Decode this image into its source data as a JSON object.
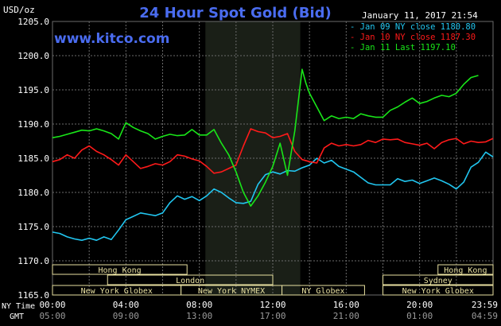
{
  "header": {
    "unit_label": "USD/oz",
    "title": "24 Hour Spot Gold (Bid)",
    "site": "www.kitco.com",
    "timestamp": "January 11, 2017 21:54"
  },
  "colors": {
    "background": "#000000",
    "title": "#4a6cf0",
    "grid": "#6b6b6b",
    "axis_text": "#ffffff",
    "session_shade": "#1a1f17",
    "jan09": "#21c6f0",
    "jan10": "#ff1a1a",
    "jan11": "#19e619",
    "market_box": "#e8e0a0"
  },
  "markets": [
    {
      "label": "Hong Kong",
      "row": 0,
      "from": 0,
      "to": 7.33
    },
    {
      "label": "Hong Kong",
      "row": 0,
      "from": 21.0,
      "to": 24.0
    },
    {
      "label": "London",
      "row": 1,
      "from": 3.0,
      "to": 12.0
    },
    {
      "label": "Sydney",
      "row": 1,
      "from": 18.0,
      "to": 24.0
    },
    {
      "label": "New York Globex",
      "row": 2,
      "from": 0,
      "to": 7.0
    },
    {
      "label": "New York NYMEX",
      "row": 2,
      "from": 7.0,
      "to": 12.5
    },
    {
      "label": "NY Globex",
      "row": 2,
      "from": 12.5,
      "to": 17.0
    },
    {
      "label": "New York Globex",
      "row": 2,
      "from": 18.0,
      "to": 24.0
    }
  ],
  "x_axis": {
    "row1_label": "NY Time",
    "row2_label": "GMT",
    "ny_ticks": [
      "00:00",
      "04:00",
      "08:00",
      "12:00",
      "16:00",
      "20:00",
      "23:59"
    ],
    "gmt_ticks": [
      "05:00",
      "09:00",
      "13:00",
      "17:00",
      "21:00",
      "01:00",
      "04:59"
    ]
  },
  "chart_data": {
    "type": "line",
    "x_unit": "hours (NY time)",
    "xlim": [
      0,
      24
    ],
    "ylim": [
      1165,
      1205
    ],
    "y_ticks": [
      1165.0,
      1170.0,
      1175.0,
      1180.0,
      1185.0,
      1190.0,
      1195.0,
      1200.0,
      1205.0
    ],
    "y_tick_labels": [
      "1165.0",
      "1170.0",
      "1175.0",
      "1180.0",
      "1185.0",
      "1190.0",
      "1195.0",
      "1200.0",
      "1205.0"
    ],
    "shaded_session": [
      8.33,
      13.5
    ],
    "series": [
      {
        "name": "Jan 09 NY close 1180.80",
        "color": "#21c6f0",
        "x": [
          0,
          0.4,
          0.8,
          1.2,
          1.6,
          2.0,
          2.4,
          2.8,
          3.2,
          3.6,
          4.0,
          4.4,
          4.8,
          5.2,
          5.6,
          6.0,
          6.4,
          6.8,
          7.2,
          7.6,
          8.0,
          8.4,
          8.8,
          9.2,
          9.6,
          10.0,
          10.4,
          10.8,
          11.2,
          11.6,
          12.0,
          12.4,
          12.8,
          13.2,
          13.6,
          14.0,
          14.4,
          14.8,
          15.2,
          15.6,
          16.0,
          16.4,
          16.8,
          17.2,
          17.6,
          18.0,
          18.4,
          18.8,
          19.2,
          19.6,
          20.0,
          20.4,
          20.8,
          21.2,
          21.6,
          22.0,
          22.4,
          22.8,
          23.2,
          23.6,
          24.0
        ],
        "y": [
          1174.2,
          1174.0,
          1173.5,
          1173.2,
          1173.0,
          1173.3,
          1173.0,
          1173.5,
          1173.1,
          1174.5,
          1176.0,
          1176.5,
          1177.0,
          1176.8,
          1176.6,
          1177.0,
          1178.5,
          1179.5,
          1179.0,
          1179.4,
          1178.8,
          1179.5,
          1180.5,
          1180.0,
          1179.2,
          1178.5,
          1178.4,
          1178.7,
          1181.2,
          1182.6,
          1183.0,
          1182.7,
          1183.2,
          1183.1,
          1183.6,
          1184.0,
          1185.0,
          1184.3,
          1184.7,
          1183.8,
          1183.4,
          1183.0,
          1182.2,
          1181.4,
          1181.1,
          1181.1,
          1181.1,
          1182.0,
          1181.6,
          1181.8,
          1181.3,
          1181.7,
          1182.1,
          1181.7,
          1181.2,
          1180.5,
          1181.5,
          1183.7,
          1184.4,
          1185.9,
          1185.2
        ]
      },
      {
        "name": "Jan 10 NY close 1187.30",
        "color": "#ff1a1a",
        "x": [
          0,
          0.4,
          0.8,
          1.2,
          1.6,
          2.0,
          2.4,
          2.8,
          3.2,
          3.6,
          4.0,
          4.4,
          4.8,
          5.2,
          5.6,
          6.0,
          6.4,
          6.8,
          7.2,
          7.6,
          8.0,
          8.4,
          8.8,
          9.2,
          9.6,
          10.0,
          10.4,
          10.8,
          11.2,
          11.6,
          12.0,
          12.4,
          12.8,
          13.2,
          13.6,
          14.0,
          14.4,
          14.8,
          15.2,
          15.6,
          16.0,
          16.4,
          16.8,
          17.2,
          17.6,
          18.0,
          18.4,
          18.8,
          19.2,
          19.6,
          20.0,
          20.4,
          20.8,
          21.2,
          21.6,
          22.0,
          22.4,
          22.8,
          23.2,
          23.6,
          24.0
        ],
        "y": [
          1184.5,
          1184.8,
          1185.5,
          1185.0,
          1186.2,
          1186.8,
          1186.0,
          1185.5,
          1184.8,
          1184.0,
          1185.5,
          1184.5,
          1183.5,
          1183.8,
          1184.2,
          1184.0,
          1184.5,
          1185.5,
          1185.3,
          1184.9,
          1184.6,
          1183.8,
          1182.8,
          1183.0,
          1183.5,
          1184.0,
          1186.8,
          1189.3,
          1188.9,
          1188.7,
          1188.0,
          1188.2,
          1188.6,
          1186.0,
          1184.8,
          1184.5,
          1184.3,
          1186.5,
          1187.2,
          1186.8,
          1187.0,
          1186.8,
          1187.0,
          1187.6,
          1187.3,
          1187.8,
          1187.7,
          1187.8,
          1187.3,
          1187.1,
          1186.9,
          1187.2,
          1186.4,
          1187.3,
          1187.7,
          1187.9,
          1187.1,
          1187.5,
          1187.3,
          1187.4,
          1187.9
        ]
      },
      {
        "name": "Jan 11 Last 1197.10",
        "color": "#19e619",
        "x": [
          0,
          0.4,
          0.8,
          1.2,
          1.6,
          2.0,
          2.4,
          2.8,
          3.2,
          3.6,
          4.0,
          4.4,
          4.8,
          5.2,
          5.6,
          6.0,
          6.4,
          6.8,
          7.2,
          7.6,
          8.0,
          8.4,
          8.8,
          9.2,
          9.6,
          10.0,
          10.4,
          10.8,
          11.2,
          11.6,
          12.0,
          12.4,
          12.8,
          13.2,
          13.4,
          13.6,
          13.8,
          14.0,
          14.4,
          14.8,
          15.2,
          15.6,
          16.0,
          16.4,
          16.8,
          17.2,
          17.6,
          18.0,
          18.4,
          18.8,
          19.2,
          19.6,
          20.0,
          20.4,
          20.8,
          21.2,
          21.6,
          22.0,
          22.4,
          22.8,
          23.2
        ],
        "y": [
          1188.0,
          1188.2,
          1188.5,
          1188.8,
          1189.1,
          1189.0,
          1189.3,
          1189.0,
          1188.6,
          1187.8,
          1190.2,
          1189.5,
          1189.0,
          1188.6,
          1187.8,
          1188.2,
          1188.5,
          1188.3,
          1188.4,
          1189.2,
          1188.4,
          1188.4,
          1189.2,
          1187.2,
          1185.5,
          1183.0,
          1180.0,
          1178.0,
          1179.5,
          1181.5,
          1183.8,
          1187.2,
          1182.5,
          1189.0,
          1193.5,
          1198.0,
          1196.0,
          1194.5,
          1192.5,
          1190.5,
          1191.2,
          1190.8,
          1191.0,
          1190.8,
          1191.5,
          1191.2,
          1191.0,
          1191.0,
          1192.0,
          1192.5,
          1193.2,
          1193.8,
          1193.0,
          1193.3,
          1193.8,
          1194.2,
          1194.0,
          1194.5,
          1195.8,
          1196.8,
          1197.1
        ]
      }
    ]
  }
}
